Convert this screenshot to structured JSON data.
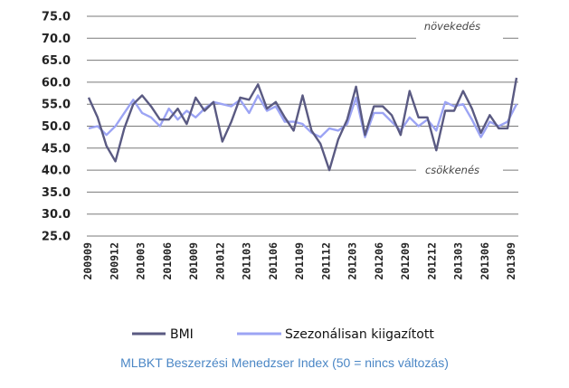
{
  "caption": "MLBKT Beszerzési Menedzser Index (50 = nincs változás)",
  "chart_data": {
    "type": "line",
    "ylim": [
      25,
      75
    ],
    "yticks": [
      25,
      30,
      35,
      40,
      45,
      50,
      55,
      60,
      65,
      70,
      75
    ],
    "ytick_labels": [
      "25.0",
      "30.0",
      "35.0",
      "40.0",
      "45.0",
      "50.0",
      "55.0",
      "60.0",
      "65.0",
      "70.0",
      "75.0"
    ],
    "x_tick_labels": [
      "200909",
      "200912",
      "201003",
      "201006",
      "201009",
      "201012",
      "201103",
      "201106",
      "201109",
      "201112",
      "201203",
      "201206",
      "201209",
      "201212",
      "201303",
      "201306",
      "201309"
    ],
    "annotations": {
      "upper": "növekedés",
      "lower": "csökkenés"
    },
    "legend_placement": "bottom",
    "series": [
      {
        "name": "BMI",
        "color": "#5a5a82",
        "values": [
          56.5,
          52.0,
          45.5,
          42.0,
          49.5,
          55.0,
          57.0,
          54.5,
          51.5,
          51.5,
          54.0,
          50.5,
          56.5,
          53.5,
          55.5,
          46.5,
          51.0,
          56.5,
          56.0,
          59.5,
          54.0,
          55.5,
          52.0,
          49.0,
          57.0,
          49.0,
          46.0,
          40.0,
          47.0,
          51.5,
          59.0,
          48.0,
          54.5,
          54.5,
          52.5,
          48.0,
          58.0,
          52.0,
          52.0,
          44.5,
          53.5,
          53.5,
          58.0,
          54.0,
          48.5,
          52.5,
          49.5,
          49.5,
          61.0
        ]
      },
      {
        "name": "Szezonálisan kiigazított",
        "color": "#9ca4f4",
        "values": [
          49.5,
          50.0,
          48.0,
          50.0,
          53.0,
          56.0,
          53.0,
          52.0,
          50.0,
          54.0,
          51.5,
          53.5,
          52.0,
          54.0,
          55.5,
          55.0,
          54.5,
          56.0,
          53.0,
          57.0,
          53.5,
          54.5,
          51.0,
          51.0,
          50.5,
          48.5,
          47.5,
          49.5,
          49.0,
          50.5,
          56.5,
          47.5,
          53.0,
          53.0,
          51.0,
          49.0,
          52.0,
          50.0,
          51.5,
          49.0,
          55.5,
          54.5,
          55.0,
          51.5,
          47.5,
          51.0,
          50.0,
          51.0,
          55.0
        ]
      }
    ]
  }
}
